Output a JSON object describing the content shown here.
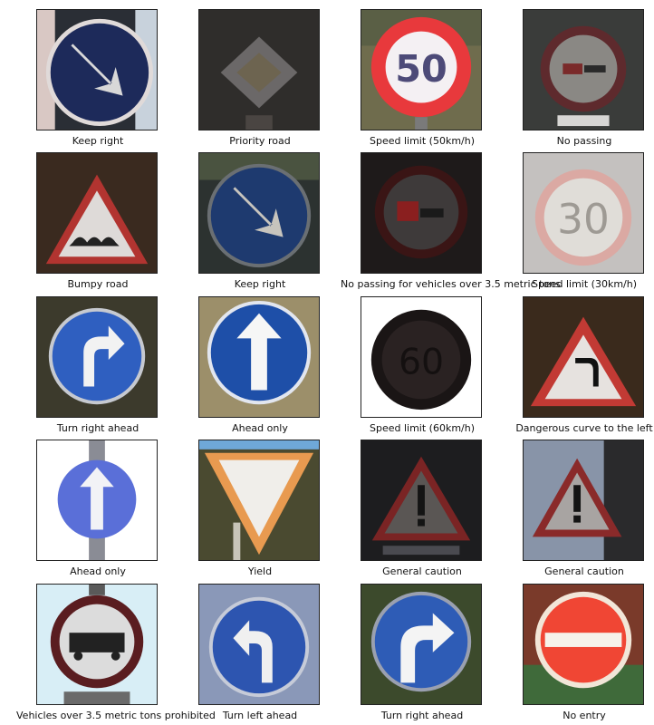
{
  "grid": {
    "captions": [
      "Keep right",
      "Priority road",
      "Speed limit (50km/h)",
      "No passing",
      "Bumpy road",
      "Keep right",
      "No passing for vehicles over 3.5 metric tons",
      "Speed limit (30km/h)",
      "Turn right ahead",
      "Ahead only",
      "Speed limit (60km/h)",
      "Dangerous curve to the left",
      "Ahead only",
      "Yield",
      "General caution",
      "General caution",
      "Vehicles over 3.5 metric tons prohibited",
      "Turn left ahead",
      "Turn right ahead",
      "No entry"
    ],
    "sign_text": {
      "speed_50": "50",
      "speed_30": "30",
      "speed_60": "60"
    }
  }
}
